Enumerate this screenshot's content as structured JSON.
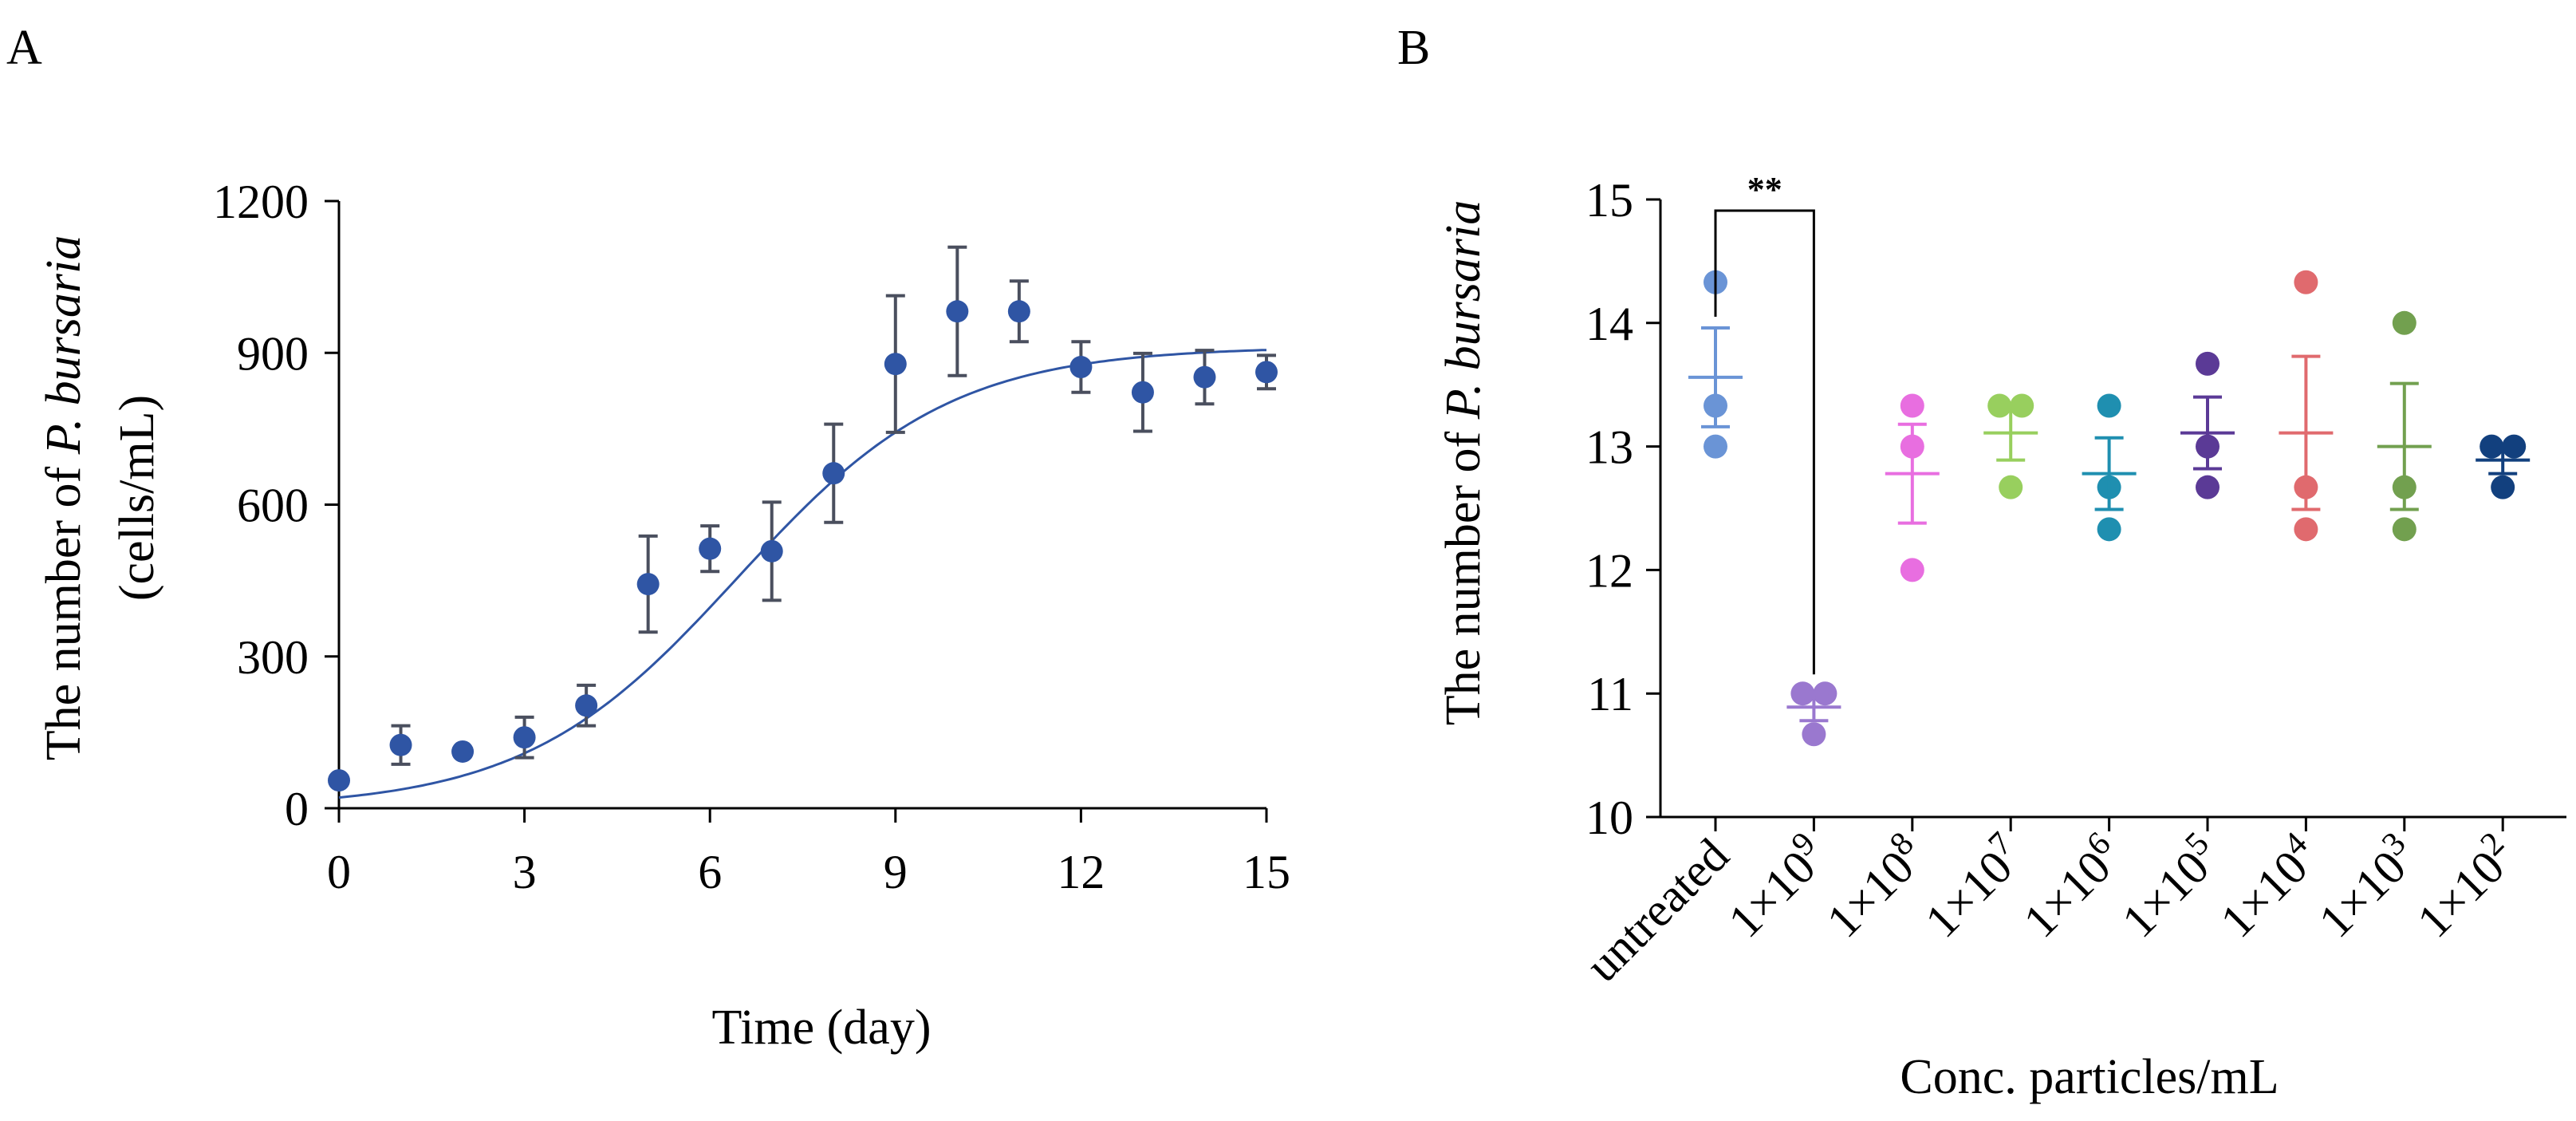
{
  "panels": {
    "a_label": "A",
    "b_label": "B"
  },
  "colors": {
    "axis": "#000000",
    "series_a": "#2f55a4",
    "error_a": "#4a4f5e"
  },
  "chart_data": [
    {
      "id": "A",
      "type": "scatter",
      "title": "",
      "xlabel": "Time (day)",
      "ylabel": "The number of P. bursaria (cells/mL)",
      "ylabel_parts": {
        "prefix": "The number of ",
        "italic": "P. bursaria",
        "line2": "(cells/mL)"
      },
      "xlim": [
        0,
        15
      ],
      "ylim": [
        0,
        1200
      ],
      "xticks": [
        0,
        3,
        6,
        9,
        12,
        15
      ],
      "yticks": [
        0,
        300,
        600,
        900,
        1200
      ],
      "grid": false,
      "points": [
        {
          "x": 0,
          "y": 55,
          "err": 0
        },
        {
          "x": 1,
          "y": 125,
          "err": 38
        },
        {
          "x": 2,
          "y": 112,
          "err": 0
        },
        {
          "x": 3,
          "y": 140,
          "err": 40
        },
        {
          "x": 4,
          "y": 203,
          "err": 40
        },
        {
          "x": 5,
          "y": 443,
          "err": 95
        },
        {
          "x": 6,
          "y": 513,
          "err": 45
        },
        {
          "x": 7,
          "y": 508,
          "err": 97
        },
        {
          "x": 8,
          "y": 662,
          "err": 97
        },
        {
          "x": 9,
          "y": 878,
          "err": 135
        },
        {
          "x": 10,
          "y": 982,
          "err": 127
        },
        {
          "x": 11,
          "y": 982,
          "err": 60
        },
        {
          "x": 12,
          "y": 872,
          "err": 50
        },
        {
          "x": 13,
          "y": 822,
          "err": 77
        },
        {
          "x": 14,
          "y": 852,
          "err": 53
        },
        {
          "x": 15,
          "y": 862,
          "err": 33
        }
      ],
      "fit": {
        "type": "logistic",
        "K": 912,
        "r": 0.58,
        "t0": 6.45,
        "baseline": 0
      }
    },
    {
      "id": "B",
      "type": "scatter",
      "title": "",
      "xlabel": "Conc. particles/mL",
      "ylabel": "The number of P. bursaria",
      "ylabel_parts": {
        "prefix": "The number of ",
        "italic": "P. bursaria"
      },
      "ylim": [
        10,
        15
      ],
      "yticks": [
        10,
        11,
        12,
        13,
        14,
        15
      ],
      "grid": false,
      "categories": [
        {
          "base": "untreated",
          "exp": ""
        },
        {
          "base": "1×10",
          "exp": "9"
        },
        {
          "base": "1×10",
          "exp": "8"
        },
        {
          "base": "1×10",
          "exp": "7"
        },
        {
          "base": "1×10",
          "exp": "6"
        },
        {
          "base": "1×10",
          "exp": "5"
        },
        {
          "base": "1×10",
          "exp": "4"
        },
        {
          "base": "1×10",
          "exp": "3"
        },
        {
          "base": "1×10",
          "exp": "2"
        }
      ],
      "groups": [
        {
          "color": "#6a94d6",
          "values": [
            14.33,
            13.33,
            13.0
          ],
          "mean": 13.56,
          "sem": 0.4
        },
        {
          "color": "#9a78cf",
          "values": [
            11.0,
            11.0,
            10.67
          ],
          "mean": 10.89,
          "sem": 0.11
        },
        {
          "color": "#e86ee0",
          "values": [
            13.33,
            13.0,
            12.0
          ],
          "mean": 12.78,
          "sem": 0.4
        },
        {
          "color": "#98cf5e",
          "values": [
            13.33,
            13.33,
            12.67
          ],
          "mean": 13.11,
          "sem": 0.22
        },
        {
          "color": "#1f8fb0",
          "values": [
            13.33,
            12.67,
            12.33
          ],
          "mean": 12.78,
          "sem": 0.29
        },
        {
          "color": "#5b3a96",
          "values": [
            13.67,
            13.0,
            12.67
          ],
          "mean": 13.11,
          "sem": 0.29
        },
        {
          "color": "#e06a6e",
          "values": [
            14.33,
            12.67,
            12.33
          ],
          "mean": 13.11,
          "sem": 0.62
        },
        {
          "color": "#72a04f",
          "values": [
            14.0,
            12.67,
            12.33
          ],
          "mean": 13.0,
          "sem": 0.51
        },
        {
          "color": "#12407e",
          "values": [
            13.0,
            13.0,
            12.67
          ],
          "mean": 12.89,
          "sem": 0.11
        }
      ],
      "significance": {
        "from": 0,
        "to": 1,
        "label": "**",
        "y": 15.0
      }
    }
  ]
}
